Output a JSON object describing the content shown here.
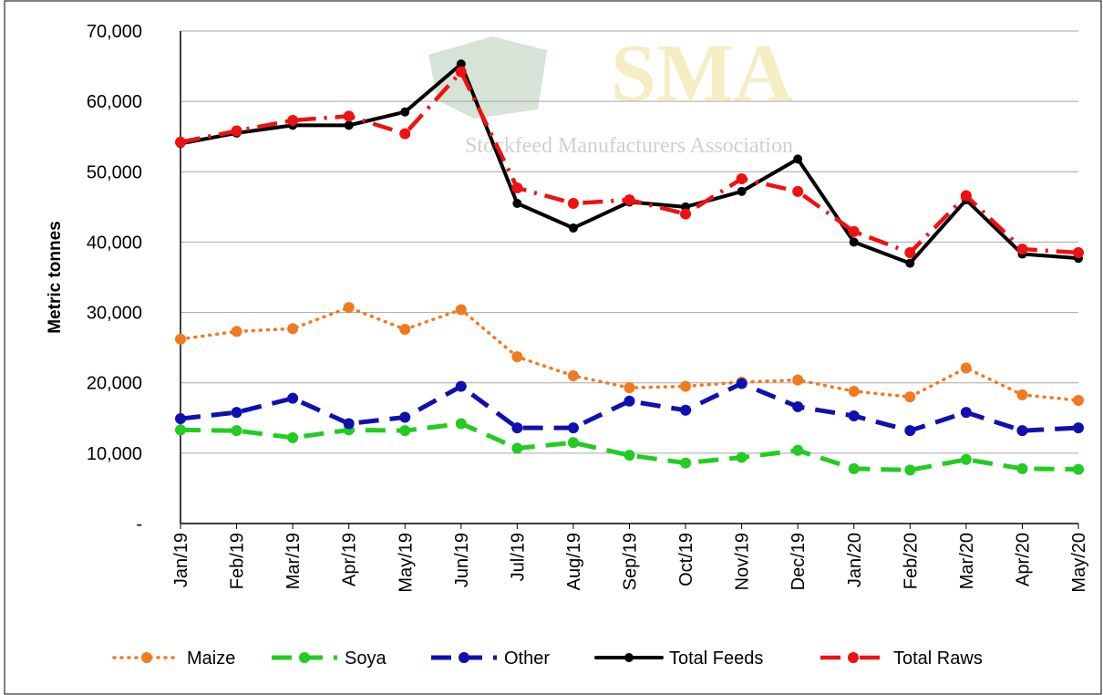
{
  "chart_data": {
    "type": "line",
    "y_label": "Metric tonnes",
    "watermark": {
      "logo": "SMA",
      "subtitle": "Stockfeed Manufacturers Association"
    },
    "categories": [
      "Jan/19",
      "Feb/19",
      "Mar/19",
      "Apr/19",
      "May/19",
      "Jun/19",
      "Jul/19",
      "Aug/19",
      "Sep/19",
      "Oct/19",
      "Nov/19",
      "Dec/19",
      "Jan/20",
      "Feb/20",
      "Mar/20",
      "Apr/20",
      "May/20"
    ],
    "series": [
      {
        "name": "Maize",
        "color": "#f07a20",
        "line_style": "dotted",
        "values": [
          26200,
          27300,
          27700,
          30700,
          27600,
          30400,
          23700,
          21000,
          19300,
          19500,
          20100,
          20400,
          18800,
          18000,
          22100,
          18300,
          17500
        ]
      },
      {
        "name": "Soya",
        "color": "#22cc22",
        "line_style": "dashed",
        "values": [
          13300,
          13200,
          12200,
          13300,
          13200,
          14200,
          10700,
          11500,
          9700,
          8600,
          9400,
          10400,
          7800,
          7600,
          9100,
          7800,
          7700
        ]
      },
      {
        "name": "Other",
        "color": "#1010b0",
        "line_style": "dashed",
        "values": [
          14900,
          15800,
          17800,
          14200,
          15100,
          19500,
          13600,
          13600,
          17400,
          16100,
          19900,
          16600,
          15300,
          13200,
          15800,
          13200,
          13600
        ]
      },
      {
        "name": "Total Feeds",
        "color": "#000000",
        "line_style": "solid",
        "values": [
          54000,
          55500,
          56600,
          56600,
          58500,
          65300,
          45500,
          42000,
          45700,
          45000,
          47200,
          51800,
          40000,
          37000,
          46000,
          38300,
          37700
        ]
      },
      {
        "name": "Total Raws",
        "color": "#ee1111",
        "line_style": "dashdot",
        "values": [
          54200,
          55800,
          57300,
          57900,
          55400,
          64200,
          47700,
          45500,
          46000,
          44000,
          49000,
          47200,
          41500,
          38500,
          46600,
          39000,
          38500
        ]
      }
    ],
    "ylim": [
      0,
      70000
    ],
    "yticks": [
      {
        "value": 0,
        "label": "-"
      },
      {
        "value": 10000,
        "label": "10,000"
      },
      {
        "value": 20000,
        "label": "20,000"
      },
      {
        "value": 30000,
        "label": "30,000"
      },
      {
        "value": 40000,
        "label": "40,000"
      },
      {
        "value": 50000,
        "label": "50,000"
      },
      {
        "value": 60000,
        "label": "60,000"
      },
      {
        "value": 70000,
        "label": "70,000"
      }
    ],
    "grid": true,
    "legend": "bottom"
  }
}
